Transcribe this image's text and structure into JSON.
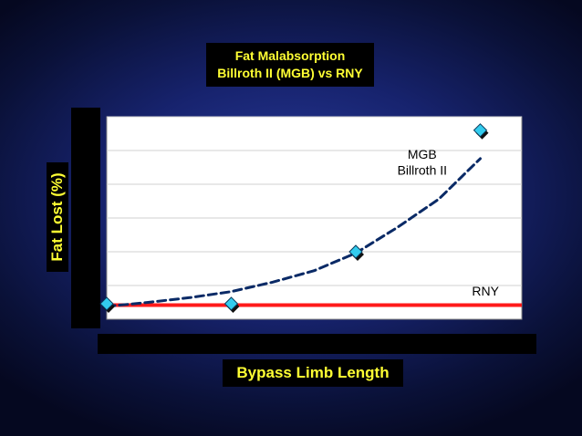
{
  "chart_data": {
    "type": "scatter",
    "title_lines": [
      "Fat Malabsorption",
      "Billroth II (MGB) vs RNY"
    ],
    "xlabel": "Bypass Limb Length",
    "ylabel": "Fat Lost (%)",
    "xlim": [
      0,
      100
    ],
    "ylim": [
      0,
      30
    ],
    "xticks": [
      "0",
      "20",
      "40",
      "60",
      "80",
      "100"
    ],
    "yticks": [
      "0",
      "5",
      "10",
      "15",
      "20",
      "25",
      "30"
    ],
    "grid": "horizontal",
    "series": [
      {
        "name": "MGB Billroth II",
        "type": "scatter",
        "x": [
          0,
          30,
          60,
          90
        ],
        "y": [
          2.3,
          2.3,
          10,
          28
        ],
        "color": "#33ccee"
      },
      {
        "name": "MGB Billroth II trend",
        "type": "line",
        "style": "dashed",
        "x": [
          0,
          10,
          20,
          30,
          40,
          50,
          60,
          70,
          80,
          90
        ],
        "y": [
          1.9,
          2.5,
          3.2,
          4.1,
          5.5,
          7.2,
          9.8,
          13.6,
          17.8,
          23.8
        ],
        "color": "#0a2a66"
      },
      {
        "name": "RNY",
        "type": "line",
        "x": [
          0,
          100
        ],
        "y": [
          2.1,
          2.1
        ],
        "color": "#ff1a1a"
      }
    ],
    "annotations": [
      {
        "text": "MGB",
        "x": 76,
        "y": 23.8
      },
      {
        "text": "Billroth II",
        "x": 76,
        "y": 21.4
      },
      {
        "text": "RNY",
        "x": 88,
        "y": 3.5
      }
    ]
  }
}
